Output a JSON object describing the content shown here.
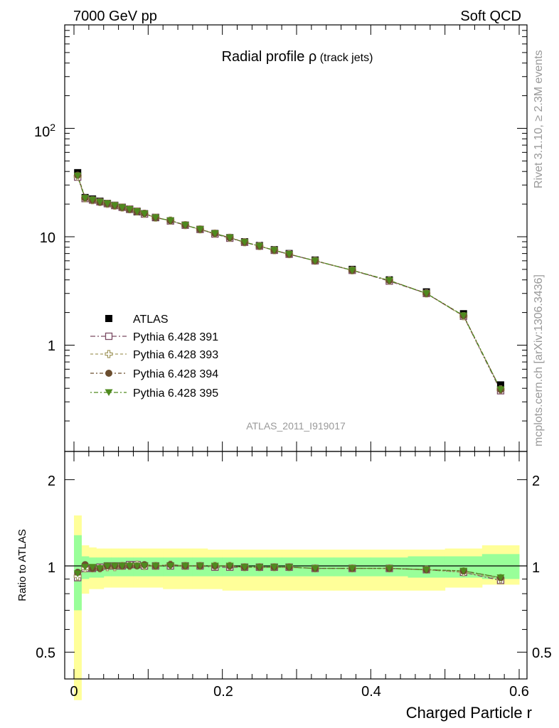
{
  "header": {
    "left": "7000 GeV pp",
    "right": "Soft QCD"
  },
  "title": {
    "main": "Radial profile ",
    "symbol": "ρ",
    "sub": " (track jets)"
  },
  "side_labels": {
    "top": "Rivet 3.1.10, ≥ 2.3M events",
    "bottom": "mcplots.cern.ch [arXiv:1306.3436]"
  },
  "watermark": "ATLAS_2011_I919017",
  "xlabel": "Charged Particle r",
  "ratio_ylabel": "Ratio to ATLAS",
  "top_yticks": {
    "ten": "10",
    "one": "1",
    "hundred_base": "10",
    "hundred_exp": "2"
  },
  "x_tick_labels": [
    "0",
    "0.2",
    "0.4",
    "0.6"
  ],
  "ratio_tick_labels": [
    "2",
    "1",
    "0.5"
  ],
  "colors": {
    "atlas": "#000000",
    "p391": "#7a4a62",
    "p393": "#a39a62",
    "p394": "#6b4e2f",
    "p395": "#4f8a1e",
    "band_inner": "#99ff99",
    "band_outer": "#ffff99"
  },
  "chart_data": [
    {
      "type": "line",
      "title": "Radial profile ρ (track jets)",
      "xlabel": "",
      "ylabel": "",
      "yscale": "log",
      "xlim": [
        -0.02,
        0.6
      ],
      "ylim": [
        0.15,
        1000
      ],
      "x": [
        0.005,
        0.015,
        0.025,
        0.035,
        0.045,
        0.055,
        0.065,
        0.075,
        0.085,
        0.095,
        0.11,
        0.13,
        0.15,
        0.17,
        0.19,
        0.21,
        0.23,
        0.25,
        0.27,
        0.29,
        0.325,
        0.375,
        0.425,
        0.475,
        0.525,
        0.575
      ],
      "series": [
        {
          "name": "ATLAS",
          "marker": "square-filled",
          "color_key": "atlas",
          "values": [
            39,
            23,
            22.3,
            21.3,
            20.3,
            19.5,
            18.7,
            17.9,
            17.0,
            16.3,
            15.0,
            14.0,
            12.8,
            11.7,
            10.7,
            9.8,
            9.0,
            8.3,
            7.6,
            7.0,
            6.1,
            5.0,
            4.0,
            3.1,
            1.95,
            0.43
          ]
        },
        {
          "name": "Pythia 6.428 391",
          "marker": "square-open",
          "color_key": "p391",
          "values": [
            35.5,
            22.5,
            21.8,
            21.0,
            20.2,
            19.4,
            18.7,
            18.0,
            17.2,
            16.2,
            15.1,
            14.0,
            12.8,
            11.7,
            10.6,
            9.7,
            8.9,
            8.2,
            7.5,
            6.9,
            6.0,
            4.9,
            3.9,
            3.0,
            1.85,
            0.38
          ]
        },
        {
          "name": "Pythia 6.428 393",
          "marker": "cross-open",
          "color_key": "p393",
          "values": [
            36,
            22.6,
            21.7,
            20.9,
            20.1,
            19.3,
            18.6,
            17.9,
            17.1,
            16.3,
            15.0,
            14.1,
            12.8,
            11.7,
            10.7,
            9.8,
            8.9,
            8.2,
            7.5,
            6.9,
            6.0,
            4.9,
            3.95,
            3.0,
            1.85,
            0.39
          ]
        },
        {
          "name": "Pythia 6.428 394",
          "marker": "circle-filled",
          "color_key": "p394",
          "values": [
            37,
            22.8,
            21.8,
            20.9,
            20.2,
            19.4,
            18.6,
            17.9,
            17.1,
            16.4,
            15.0,
            14.1,
            12.8,
            11.7,
            10.7,
            9.8,
            8.9,
            8.2,
            7.5,
            6.9,
            6.0,
            4.9,
            3.95,
            3.0,
            1.87,
            0.39
          ]
        },
        {
          "name": "Pythia 6.428 395",
          "marker": "triangle-down-filled",
          "color_key": "p395",
          "values": [
            36.5,
            22.7,
            21.9,
            20.9,
            20.2,
            19.4,
            18.6,
            17.9,
            17.1,
            16.3,
            15.0,
            14.1,
            12.8,
            11.7,
            10.7,
            9.8,
            8.9,
            8.2,
            7.5,
            6.9,
            6.0,
            4.9,
            3.95,
            3.0,
            1.87,
            0.39
          ]
        }
      ],
      "legend": "bottom-left"
    },
    {
      "type": "line",
      "xlabel": "Charged Particle r",
      "ylabel": "Ratio to ATLAS",
      "xlim": [
        -0.02,
        0.6
      ],
      "ylim": [
        0.34,
        2.4
      ],
      "x": [
        0.005,
        0.015,
        0.025,
        0.035,
        0.045,
        0.055,
        0.065,
        0.075,
        0.085,
        0.095,
        0.11,
        0.13,
        0.15,
        0.17,
        0.19,
        0.21,
        0.23,
        0.25,
        0.27,
        0.29,
        0.325,
        0.375,
        0.425,
        0.475,
        0.525,
        0.575
      ],
      "band_edges": [
        0.0,
        0.01,
        0.02,
        0.03,
        0.04,
        0.05,
        0.06,
        0.07,
        0.08,
        0.09,
        0.1,
        0.12,
        0.14,
        0.16,
        0.18,
        0.2,
        0.22,
        0.24,
        0.26,
        0.28,
        0.3,
        0.35,
        0.4,
        0.45,
        0.5,
        0.55,
        0.6
      ],
      "band_inner": [
        [
          0.7,
          1.28
        ],
        [
          0.9,
          1.08
        ],
        [
          0.91,
          1.07
        ],
        [
          0.91,
          1.07
        ],
        [
          0.92,
          1.07
        ],
        [
          0.92,
          1.07
        ],
        [
          0.92,
          1.07
        ],
        [
          0.92,
          1.07
        ],
        [
          0.92,
          1.07
        ],
        [
          0.92,
          1.07
        ],
        [
          0.92,
          1.07
        ],
        [
          0.92,
          1.07
        ],
        [
          0.92,
          1.07
        ],
        [
          0.92,
          1.07
        ],
        [
          0.92,
          1.07
        ],
        [
          0.92,
          1.07
        ],
        [
          0.92,
          1.07
        ],
        [
          0.92,
          1.07
        ],
        [
          0.92,
          1.07
        ],
        [
          0.92,
          1.07
        ],
        [
          0.92,
          1.07
        ],
        [
          0.92,
          1.07
        ],
        [
          0.92,
          1.07
        ],
        [
          0.91,
          1.08
        ],
        [
          0.91,
          1.08
        ],
        [
          0.9,
          1.1
        ]
      ],
      "band_outer": [
        [
          0.34,
          1.5
        ],
        [
          0.8,
          1.18
        ],
        [
          0.83,
          1.16
        ],
        [
          0.83,
          1.15
        ],
        [
          0.84,
          1.15
        ],
        [
          0.84,
          1.15
        ],
        [
          0.84,
          1.15
        ],
        [
          0.84,
          1.15
        ],
        [
          0.84,
          1.15
        ],
        [
          0.84,
          1.15
        ],
        [
          0.84,
          1.15
        ],
        [
          0.83,
          1.15
        ],
        [
          0.83,
          1.15
        ],
        [
          0.83,
          1.15
        ],
        [
          0.83,
          1.14
        ],
        [
          0.82,
          1.14
        ],
        [
          0.82,
          1.14
        ],
        [
          0.82,
          1.14
        ],
        [
          0.82,
          1.14
        ],
        [
          0.82,
          1.14
        ],
        [
          0.82,
          1.14
        ],
        [
          0.82,
          1.14
        ],
        [
          0.82,
          1.14
        ],
        [
          0.82,
          1.14
        ],
        [
          0.84,
          1.15
        ],
        [
          0.86,
          1.18
        ]
      ],
      "series": [
        {
          "name": "Pythia 6.428 391",
          "marker": "square-open",
          "color_key": "p391",
          "values": [
            0.91,
            0.98,
            0.98,
            0.99,
            1.0,
            1.0,
            1.0,
            1.01,
            1.01,
            1.0,
            1.0,
            1.0,
            1.0,
            1.0,
            0.99,
            0.99,
            0.99,
            0.99,
            0.99,
            0.99,
            0.98,
            0.98,
            0.98,
            0.97,
            0.95,
            0.89
          ]
        },
        {
          "name": "Pythia 6.428 393",
          "marker": "cross-open",
          "color_key": "p393",
          "values": [
            0.92,
            0.98,
            0.98,
            0.98,
            0.99,
            0.99,
            1.0,
            1.0,
            1.01,
            1.0,
            1.0,
            1.01,
            1.0,
            1.0,
            1.0,
            1.0,
            0.99,
            0.99,
            0.99,
            0.99,
            0.98,
            0.98,
            0.98,
            0.97,
            0.95,
            0.9
          ]
        },
        {
          "name": "Pythia 6.428 394",
          "marker": "circle-filled",
          "color_key": "p394",
          "values": [
            0.95,
            1.01,
            0.98,
            0.98,
            1.0,
            1.0,
            1.0,
            1.0,
            1.0,
            1.01,
            1.0,
            1.01,
            1.0,
            1.0,
            1.0,
            1.0,
            0.99,
            0.99,
            0.99,
            0.99,
            0.98,
            0.98,
            0.98,
            0.97,
            0.96,
            0.91
          ]
        },
        {
          "name": "Pythia 6.428 395",
          "marker": "triangle-down-filled",
          "color_key": "p395",
          "values": [
            0.94,
            0.99,
            0.99,
            0.98,
            1.0,
            1.0,
            1.0,
            1.0,
            1.0,
            1.0,
            1.0,
            1.0,
            1.0,
            1.0,
            1.0,
            1.0,
            0.99,
            0.99,
            0.99,
            0.99,
            0.98,
            0.98,
            0.98,
            0.97,
            0.96,
            0.91
          ]
        }
      ],
      "reference_line": 1
    }
  ]
}
